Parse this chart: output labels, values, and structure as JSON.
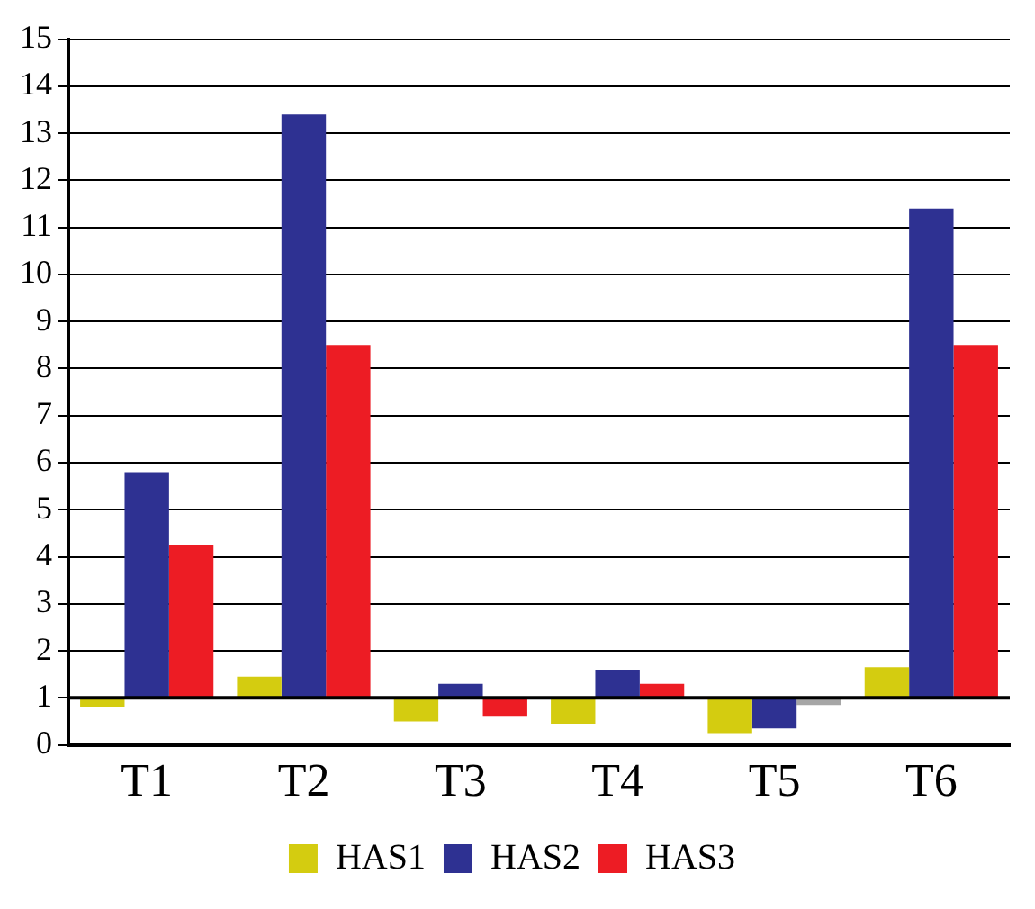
{
  "chart_data": {
    "type": "bar",
    "categories": [
      "T1",
      "T2",
      "T3",
      "T4",
      "T5",
      "T6"
    ],
    "series": [
      {
        "name": "HAS1",
        "color": "#d4cc10",
        "base": [
          1,
          1,
          1,
          1,
          1,
          1
        ],
        "values": [
          -0.2,
          0.45,
          -0.5,
          -0.55,
          -0.75,
          0.65
        ]
      },
      {
        "name": "HAS2",
        "color": "#2e3192",
        "base": [
          1,
          1,
          1,
          1,
          1,
          1
        ],
        "values": [
          4.8,
          12.4,
          0.3,
          0.6,
          -0.65,
          10.4
        ]
      },
      {
        "name": "HAS3",
        "color": "#ed1c24",
        "colors": [
          "#ed1c24",
          "#ed1c24",
          "#ed1c24",
          "#ed1c24",
          "#a6a6a6",
          "#ed1c24"
        ],
        "base": [
          1,
          1,
          1,
          1,
          1,
          1
        ],
        "values": [
          3.25,
          7.5,
          -0.4,
          0.3,
          -0.15,
          7.5
        ]
      }
    ],
    "ylim": [
      0,
      15
    ],
    "yticks": [
      0,
      1,
      2,
      3,
      4,
      5,
      6,
      7,
      8,
      9,
      10,
      11,
      12,
      13,
      14,
      15
    ],
    "grid": "y",
    "legend": "bottom",
    "ref_lines": [
      {
        "axis": "y",
        "value": 1,
        "color": "#000000"
      }
    ]
  }
}
